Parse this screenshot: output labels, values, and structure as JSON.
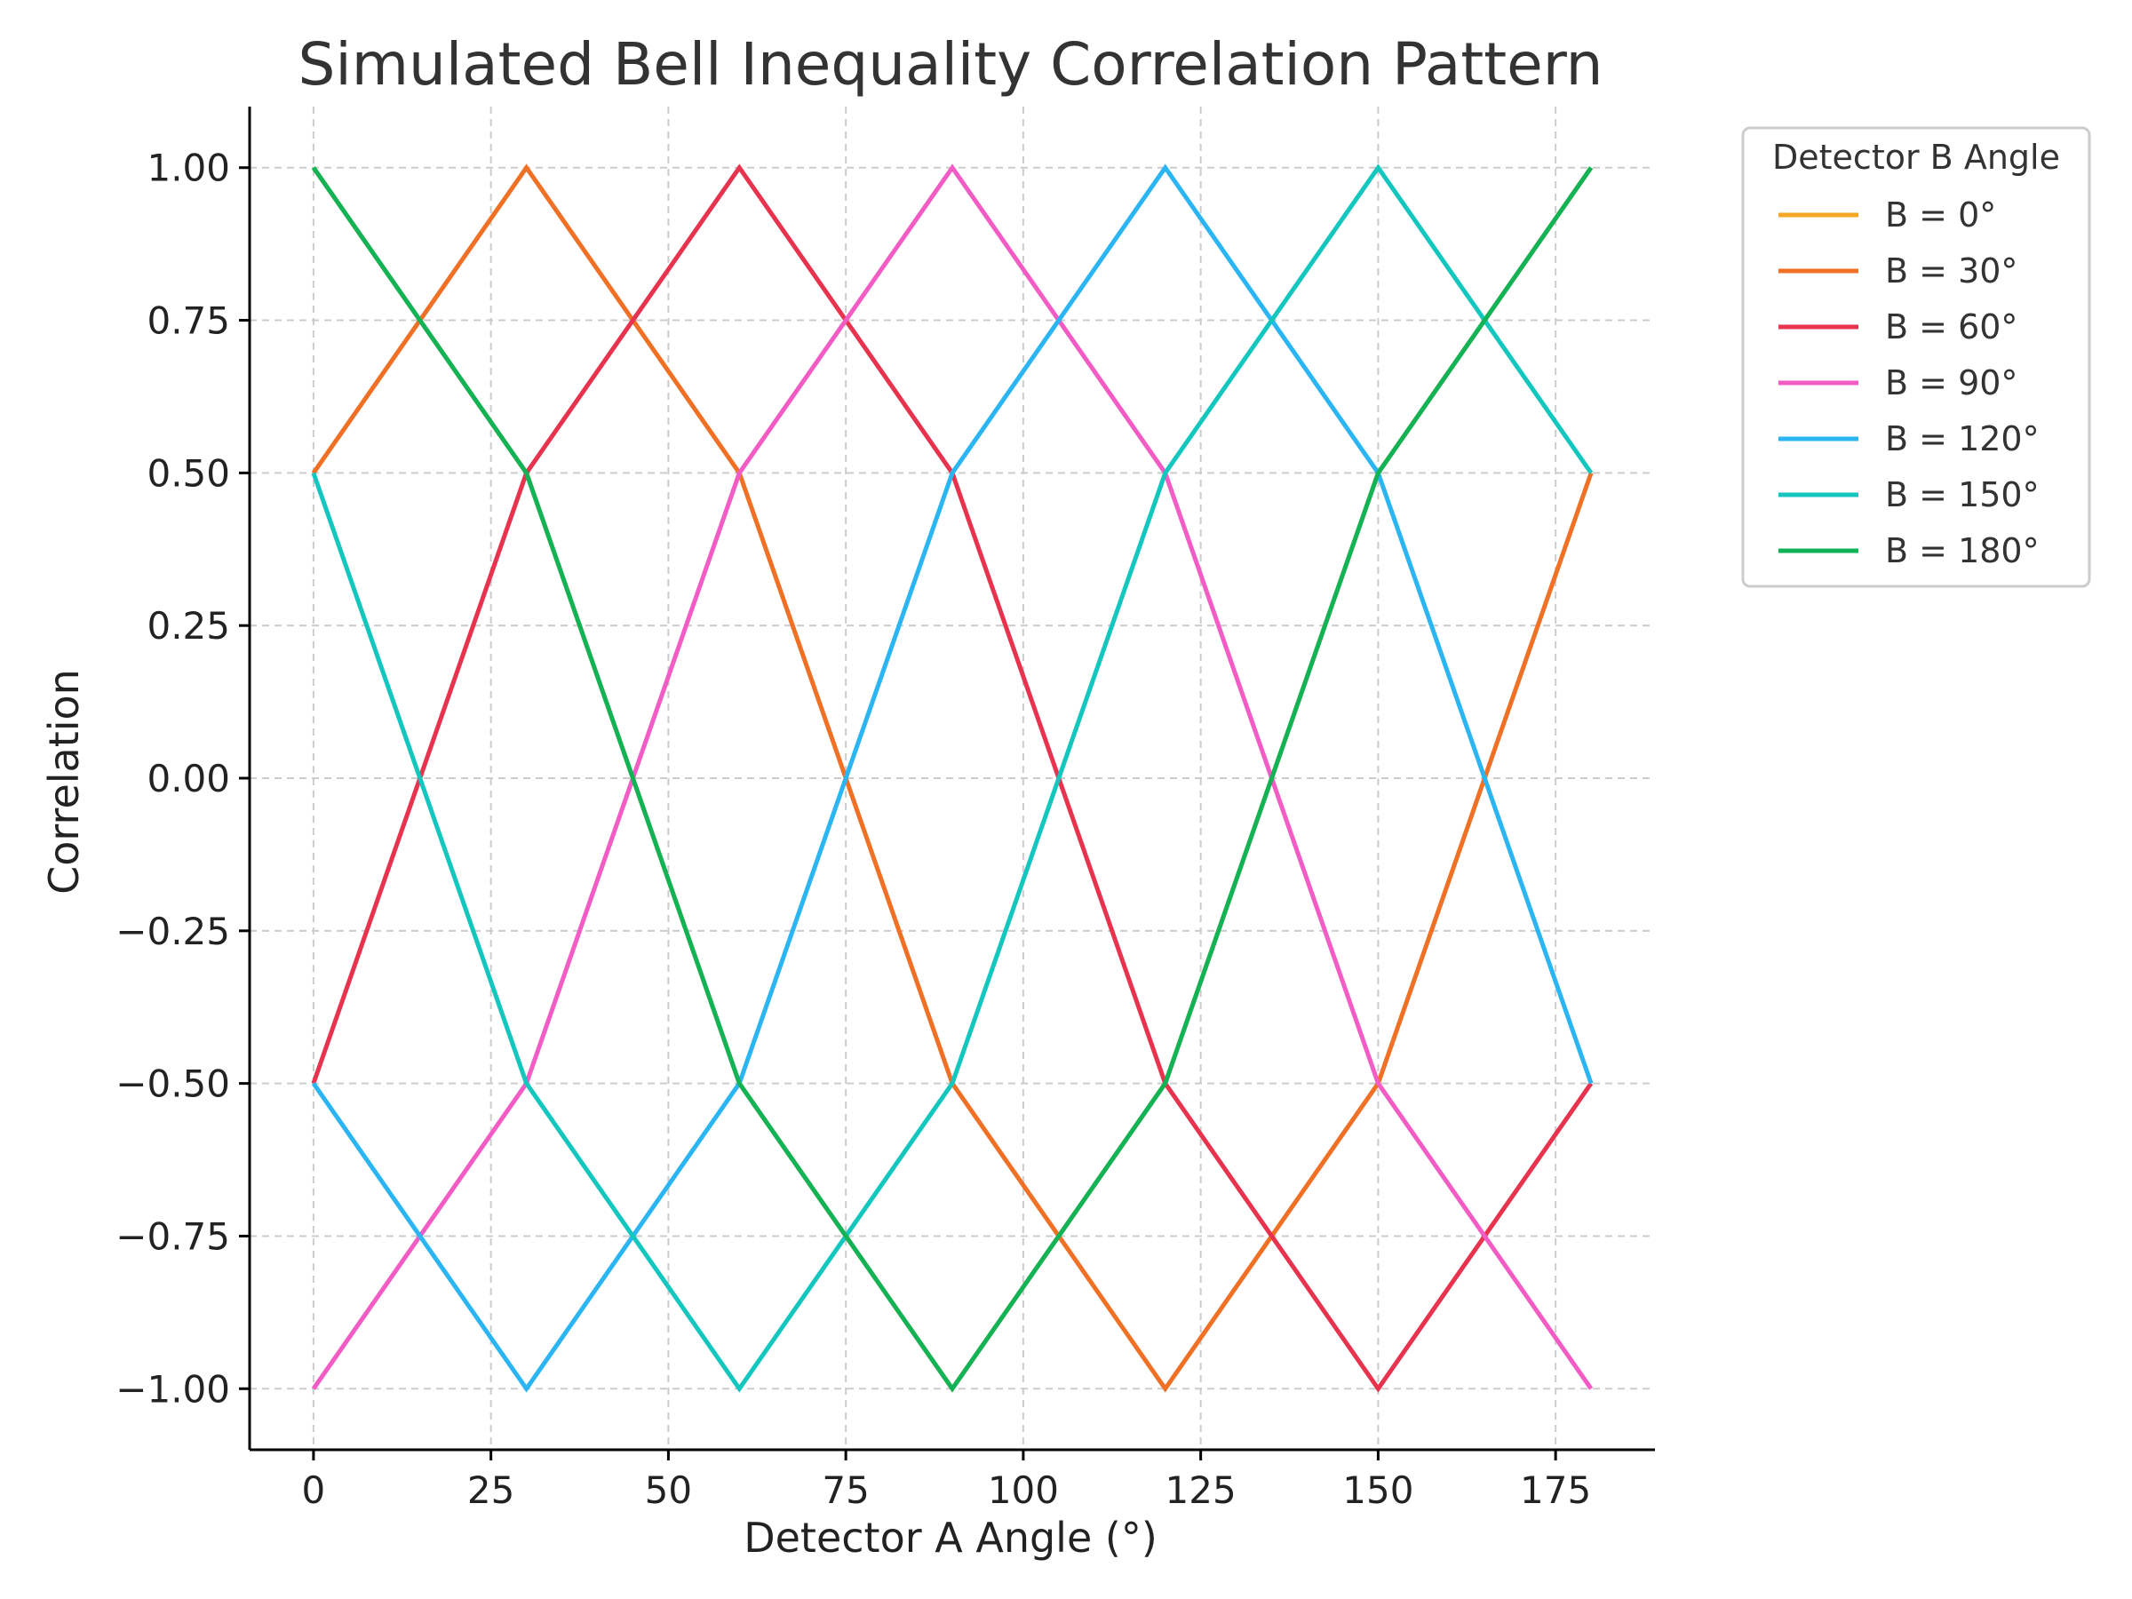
{
  "chart_data": {
    "type": "line",
    "title": "Simulated Bell Inequality Correlation Pattern",
    "xlabel": "Detector A Angle (°)",
    "ylabel": "Correlation",
    "xlim": [
      -9,
      189
    ],
    "ylim": [
      -1.1,
      1.1
    ],
    "xticks": [
      0,
      25,
      50,
      75,
      100,
      125,
      150,
      175
    ],
    "yticks": [
      -1.0,
      -0.75,
      -0.5,
      -0.25,
      0.0,
      0.25,
      0.5,
      0.75,
      1.0
    ],
    "xtick_labels": [
      "0",
      "25",
      "50",
      "75",
      "100",
      "125",
      "150",
      "175"
    ],
    "ytick_labels": [
      "−1.00",
      "−0.75",
      "−0.50",
      "−0.25",
      "0.00",
      "0.25",
      "0.50",
      "0.75",
      "1.00"
    ],
    "grid": true,
    "legend": {
      "title": "Detector B Angle",
      "placement": "outside-right-top"
    },
    "x": [
      0,
      30,
      60,
      90,
      120,
      150,
      180
    ],
    "series": [
      {
        "name": "B = 0°",
        "color": "#F5A623",
        "values": [
          1.0,
          0.5,
          -0.5,
          -1.0,
          -0.5,
          0.5,
          1.0
        ]
      },
      {
        "name": "B = 30°",
        "color": "#F07025",
        "values": [
          0.5,
          1.0,
          0.5,
          -0.5,
          -1.0,
          -0.5,
          0.5
        ]
      },
      {
        "name": "B = 60°",
        "color": "#E8334F",
        "values": [
          -0.5,
          0.5,
          1.0,
          0.5,
          -0.5,
          -1.0,
          -0.5
        ]
      },
      {
        "name": "B = 90°",
        "color": "#F25CC4",
        "values": [
          -1.0,
          -0.5,
          0.5,
          1.0,
          0.5,
          -0.5,
          -1.0
        ]
      },
      {
        "name": "B = 120°",
        "color": "#2BB5F2",
        "values": [
          -0.5,
          -1.0,
          -0.5,
          0.5,
          1.0,
          0.5,
          -0.5
        ]
      },
      {
        "name": "B = 150°",
        "color": "#13C6BE",
        "values": [
          0.5,
          -0.5,
          -1.0,
          -0.5,
          0.5,
          1.0,
          0.5
        ]
      },
      {
        "name": "B = 180°",
        "color": "#12B356",
        "values": [
          1.0,
          0.5,
          -0.5,
          -1.0,
          -0.5,
          0.5,
          1.0
        ]
      }
    ]
  }
}
